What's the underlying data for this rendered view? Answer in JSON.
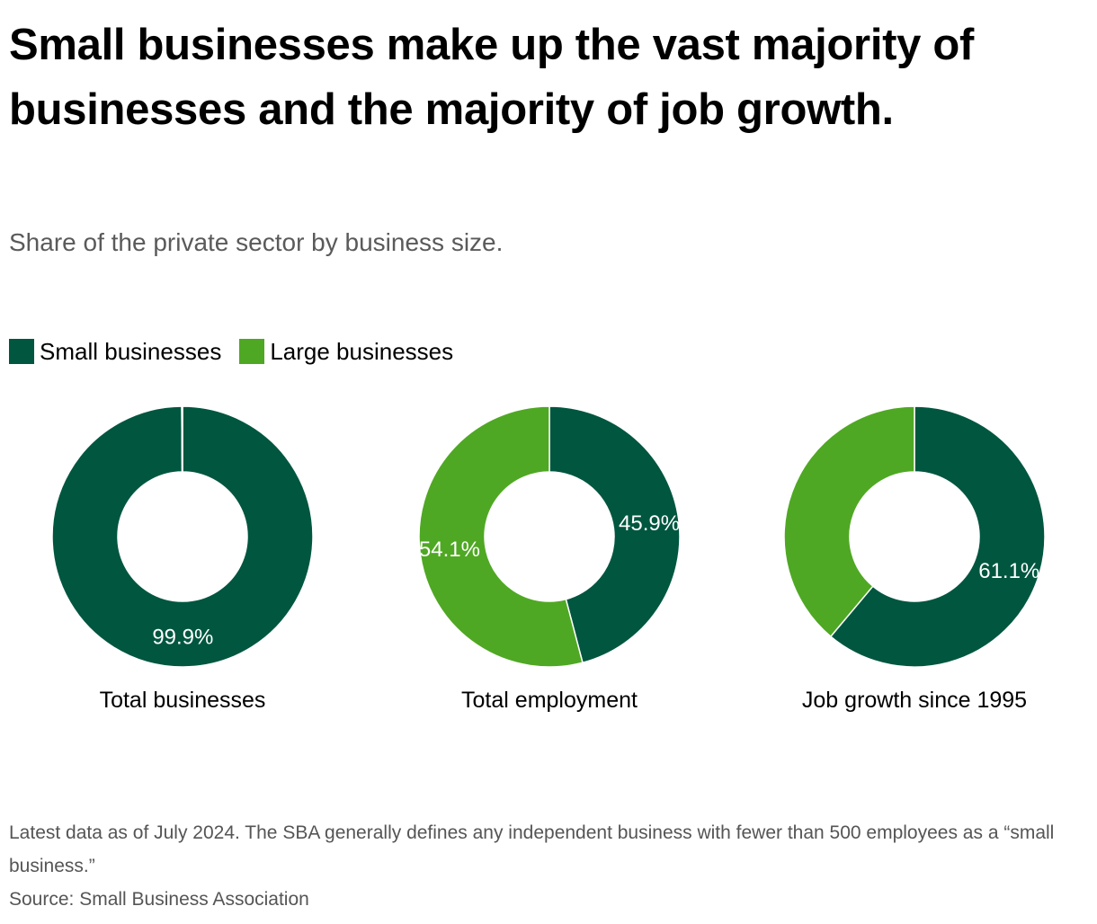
{
  "title": "Small businesses make up the vast majority of businesses and the majority of job growth.",
  "subtitle": "Share of the private sector by business size.",
  "legend": [
    {
      "label": "Small businesses",
      "color": "#00563f"
    },
    {
      "label": "Large businesses",
      "color": "#4fa823"
    }
  ],
  "chart_data": {
    "type": "pie",
    "variant": "donut",
    "series_names": [
      "Small businesses",
      "Large businesses"
    ],
    "colors": {
      "Small businesses": "#00563f",
      "Large businesses": "#4fa823"
    },
    "legend_position": "top-left",
    "charts": [
      {
        "label": "Total businesses",
        "slices": [
          {
            "name": "Small businesses",
            "value": 99.9,
            "label": "99.9%"
          },
          {
            "name": "Large businesses",
            "value": 0.1,
            "label": ""
          }
        ]
      },
      {
        "label": "Total employment",
        "slices": [
          {
            "name": "Small businesses",
            "value": 45.9,
            "label": "45.9%"
          },
          {
            "name": "Large businesses",
            "value": 54.1,
            "label": "54.1%"
          }
        ]
      },
      {
        "label": "Job growth since 1995",
        "slices": [
          {
            "name": "Small businesses",
            "value": 61.1,
            "label": "61.1%"
          },
          {
            "name": "Large businesses",
            "value": 38.9,
            "label": ""
          }
        ]
      }
    ]
  },
  "notes": {
    "footnote": "Latest data as of July 2024. The SBA generally defines any independent business with fewer than 500 employees as a “small business.”",
    "source": "Source: Small Business Association"
  }
}
